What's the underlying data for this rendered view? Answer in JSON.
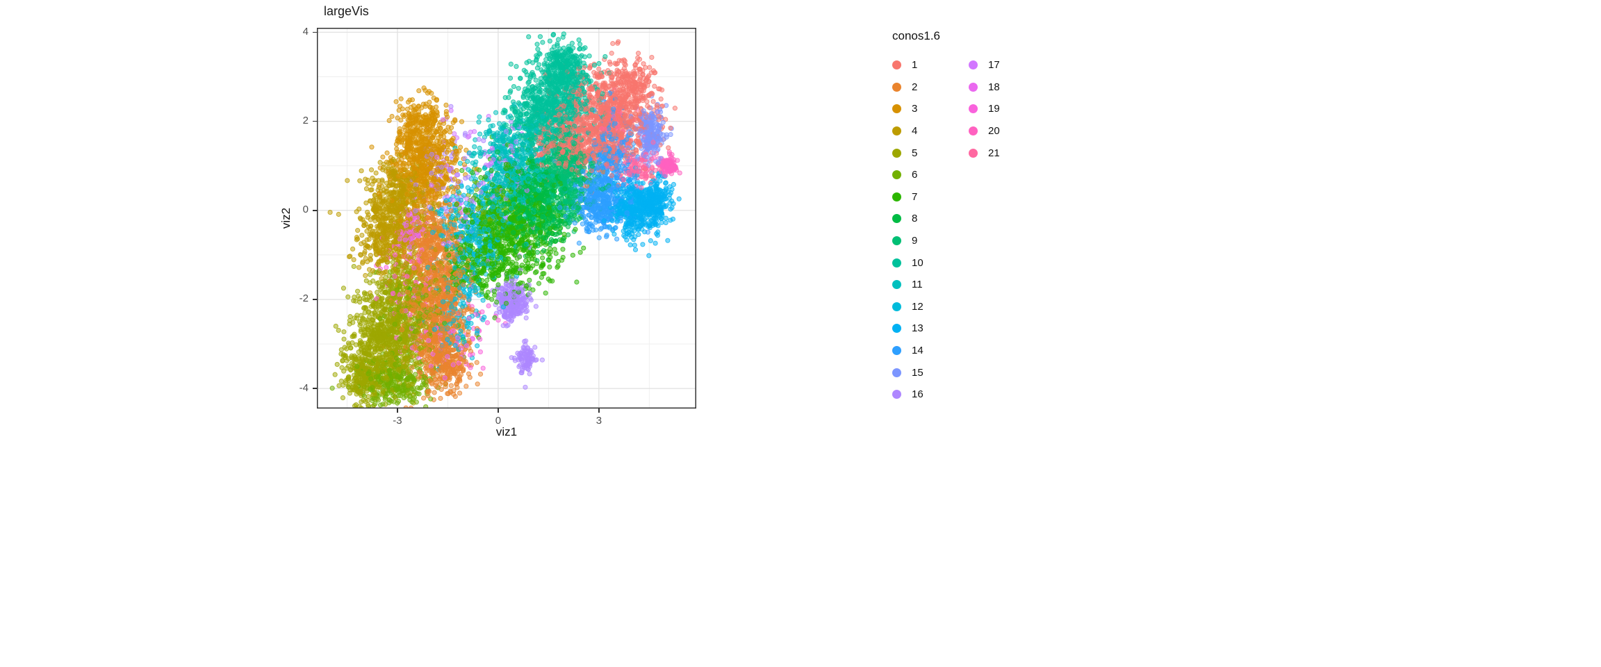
{
  "figure": {
    "background": "#ffffff"
  },
  "chart_data": {
    "type": "scatter",
    "title": "largeVis",
    "xlabel": "viz1",
    "ylabel": "viz2",
    "xlim": [
      -5.4,
      5.9
    ],
    "ylim": [
      -4.45,
      4.1
    ],
    "x_ticks": [
      -3,
      0,
      3
    ],
    "y_ticks": [
      -4,
      -2,
      0,
      2,
      4
    ],
    "grid": "major+minor",
    "legend": {
      "title": "conos1.6",
      "position": "right",
      "items_per_column": 16
    },
    "point_style": {
      "radius": 3.1,
      "fill_alpha": 0.5,
      "stroke_alpha": 0.75
    },
    "clusters": [
      {
        "label": "1",
        "color": "#F8766D",
        "blobs": [
          [
            3.35,
            2.15,
            0.7,
            0.55,
            850
          ],
          [
            2.35,
            1.55,
            0.5,
            0.4,
            260
          ],
          [
            1.6,
            1.35,
            0.4,
            0.3,
            70
          ],
          [
            3.9,
            2.9,
            0.35,
            0.25,
            120
          ]
        ]
      },
      {
        "label": "2",
        "color": "#EA842D",
        "blobs": [
          [
            -1.75,
            -2.2,
            0.45,
            0.75,
            780
          ],
          [
            -1.95,
            -0.7,
            0.4,
            0.5,
            300
          ],
          [
            -1.55,
            -3.5,
            0.4,
            0.3,
            220
          ]
        ]
      },
      {
        "label": "3",
        "color": "#D79100",
        "blobs": [
          [
            -2.2,
            1.1,
            0.5,
            0.55,
            650
          ],
          [
            -2.3,
            2.0,
            0.35,
            0.3,
            150
          ]
        ]
      },
      {
        "label": "4",
        "color": "#BD9C00",
        "blobs": [
          [
            -3.15,
            -0.45,
            0.5,
            0.55,
            620
          ],
          [
            -2.9,
            0.45,
            0.4,
            0.35,
            180
          ]
        ]
      },
      {
        "label": "5",
        "color": "#9DA700",
        "blobs": [
          [
            -3.3,
            -2.85,
            0.55,
            0.6,
            850
          ],
          [
            -3.95,
            -3.7,
            0.35,
            0.3,
            250
          ],
          [
            -2.75,
            -1.7,
            0.4,
            0.35,
            150
          ]
        ]
      },
      {
        "label": "6",
        "color": "#72B000",
        "blobs": [
          [
            -3.05,
            -3.85,
            0.55,
            0.28,
            280
          ],
          [
            -2.5,
            -2.3,
            0.45,
            0.5,
            120
          ],
          [
            -0.1,
            0.0,
            0.5,
            0.4,
            60
          ]
        ]
      },
      {
        "label": "7",
        "color": "#2CB600",
        "blobs": [
          [
            0.25,
            -0.55,
            0.75,
            0.6,
            780
          ],
          [
            -0.7,
            -1.3,
            0.5,
            0.4,
            150
          ]
        ]
      },
      {
        "label": "8",
        "color": "#00BB44",
        "blobs": [
          [
            1.2,
            0.15,
            0.55,
            0.5,
            560
          ]
        ]
      },
      {
        "label": "9",
        "color": "#00BF74",
        "blobs": [
          [
            1.95,
            0.8,
            0.5,
            0.45,
            520
          ]
        ]
      },
      {
        "label": "10",
        "color": "#00C19B",
        "blobs": [
          [
            1.75,
            2.55,
            0.55,
            0.5,
            680
          ],
          [
            1.95,
            3.3,
            0.3,
            0.25,
            190
          ],
          [
            1.05,
            1.95,
            0.4,
            0.35,
            210
          ]
        ]
      },
      {
        "label": "11",
        "color": "#00C0BE",
        "blobs": [
          [
            0.5,
            0.85,
            0.55,
            0.5,
            440
          ],
          [
            0.1,
            1.5,
            0.35,
            0.3,
            90
          ]
        ]
      },
      {
        "label": "12",
        "color": "#00BBDB",
        "blobs": [
          [
            -0.8,
            -0.6,
            0.55,
            0.65,
            330
          ],
          [
            -1.3,
            -2.4,
            0.4,
            0.6,
            110
          ]
        ]
      },
      {
        "label": "13",
        "color": "#00B1F3",
        "blobs": [
          [
            4.2,
            0.05,
            0.4,
            0.3,
            480
          ],
          [
            4.75,
            0.3,
            0.2,
            0.2,
            110
          ]
        ]
      },
      {
        "label": "14",
        "color": "#2E9FFF",
        "blobs": [
          [
            3.0,
            0.2,
            0.42,
            0.35,
            430
          ],
          [
            3.35,
            1.3,
            0.35,
            0.5,
            240
          ]
        ]
      },
      {
        "label": "15",
        "color": "#7C96FF",
        "blobs": [
          [
            4.55,
            1.72,
            0.22,
            0.28,
            200
          ]
        ]
      },
      {
        "label": "16",
        "color": "#AE87FF",
        "blobs": [
          [
            0.4,
            -2.05,
            0.22,
            0.2,
            250
          ],
          [
            0.85,
            -3.3,
            0.14,
            0.17,
            90
          ],
          [
            -0.2,
            0.3,
            0.8,
            0.8,
            60
          ],
          [
            -1.8,
            0.8,
            0.5,
            0.5,
            50
          ]
        ]
      },
      {
        "label": "17",
        "color": "#D277FF",
        "blobs": [
          [
            -1.4,
            0.5,
            0.7,
            0.8,
            70
          ],
          [
            0.3,
            1.0,
            0.6,
            0.5,
            40
          ]
        ]
      },
      {
        "label": "18",
        "color": "#EA69EF",
        "blobs": [
          [
            -2.55,
            -0.5,
            0.2,
            0.25,
            80
          ],
          [
            -1.9,
            -3.0,
            0.45,
            0.4,
            50
          ]
        ]
      },
      {
        "label": "19",
        "color": "#F962DC",
        "blobs": [
          [
            -2.3,
            -1.9,
            0.5,
            0.7,
            60
          ],
          [
            -0.9,
            -2.6,
            0.4,
            0.5,
            40
          ],
          [
            -3.1,
            -1.4,
            0.4,
            0.6,
            30
          ]
        ]
      },
      {
        "label": "20",
        "color": "#FF61C0",
        "blobs": [
          [
            5.05,
            1.0,
            0.15,
            0.09,
            110
          ]
        ]
      },
      {
        "label": "21",
        "color": "#FF68A1",
        "blobs": [
          [
            4.1,
            0.92,
            0.3,
            0.2,
            100
          ],
          [
            3.7,
            1.8,
            0.4,
            0.35,
            60
          ]
        ]
      }
    ]
  }
}
